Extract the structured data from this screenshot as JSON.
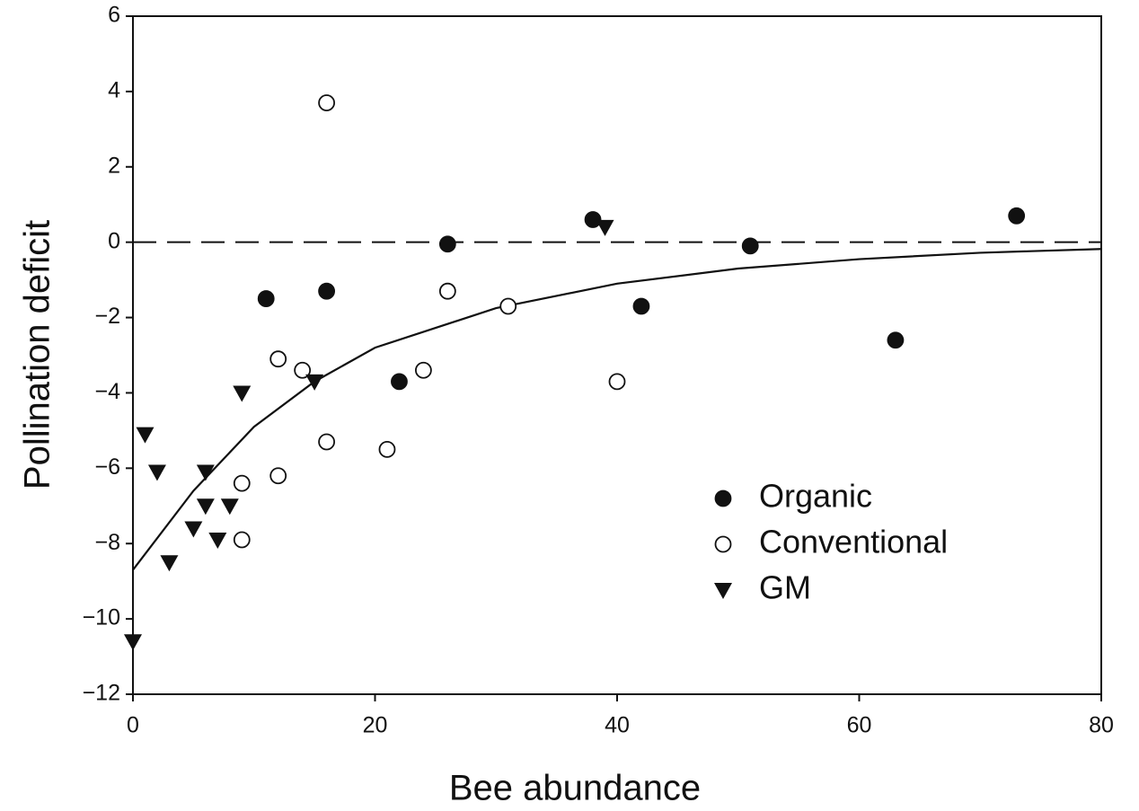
{
  "chart_data": {
    "type": "scatter",
    "xlabel": "Bee abundance",
    "ylabel": "Pollination deficit",
    "xlim": [
      0,
      80
    ],
    "ylim": [
      -12,
      6
    ],
    "xticks": [
      0,
      20,
      40,
      60,
      80
    ],
    "yticks": [
      {
        "value": -12,
        "label": "−12"
      },
      {
        "value": -10,
        "label": "−10"
      },
      {
        "value": -8,
        "label": "−8"
      },
      {
        "value": -6,
        "label": "−6"
      },
      {
        "value": -4,
        "label": "−4"
      },
      {
        "value": -2,
        "label": "−2"
      },
      0,
      2,
      4,
      6
    ],
    "reference_line": 0,
    "legend": "lower right",
    "series": [
      {
        "name": "Organic",
        "marker": "filled-circle",
        "color": "#111111",
        "x": [
          11,
          16,
          22,
          26,
          38,
          42,
          51,
          63,
          73
        ],
        "values": [
          -1.5,
          -1.3,
          -3.7,
          -0.05,
          0.6,
          -1.7,
          -0.1,
          -2.6,
          0.7
        ]
      },
      {
        "name": "Conventional",
        "marker": "open-circle",
        "color": "#111111",
        "x": [
          16,
          12,
          14,
          24,
          26,
          31,
          40,
          16,
          21,
          12,
          9,
          9
        ],
        "values": [
          3.7,
          -3.1,
          -3.4,
          -3.4,
          -1.3,
          -1.7,
          -3.7,
          -5.3,
          -5.5,
          -6.2,
          -6.4,
          -7.9
        ]
      },
      {
        "name": "GM",
        "marker": "triangle-down",
        "color": "#111111",
        "x": [
          0,
          1,
          2,
          3,
          5,
          6,
          6,
          7,
          8,
          9,
          15,
          39
        ],
        "values": [
          -10.6,
          -5.1,
          -6.1,
          -8.5,
          -7.6,
          -6.1,
          -7,
          -7.9,
          -7,
          -4,
          -3.7,
          0.4
        ]
      }
    ],
    "curve": {
      "color": "#111111",
      "x": [
        0,
        5,
        10,
        15,
        20,
        30,
        40,
        50,
        60,
        70,
        80
      ],
      "values": [
        -8.7,
        -6.6,
        -4.9,
        -3.7,
        -2.8,
        -1.75,
        -1.1,
        -0.7,
        -0.45,
        -0.28,
        -0.18
      ]
    }
  }
}
